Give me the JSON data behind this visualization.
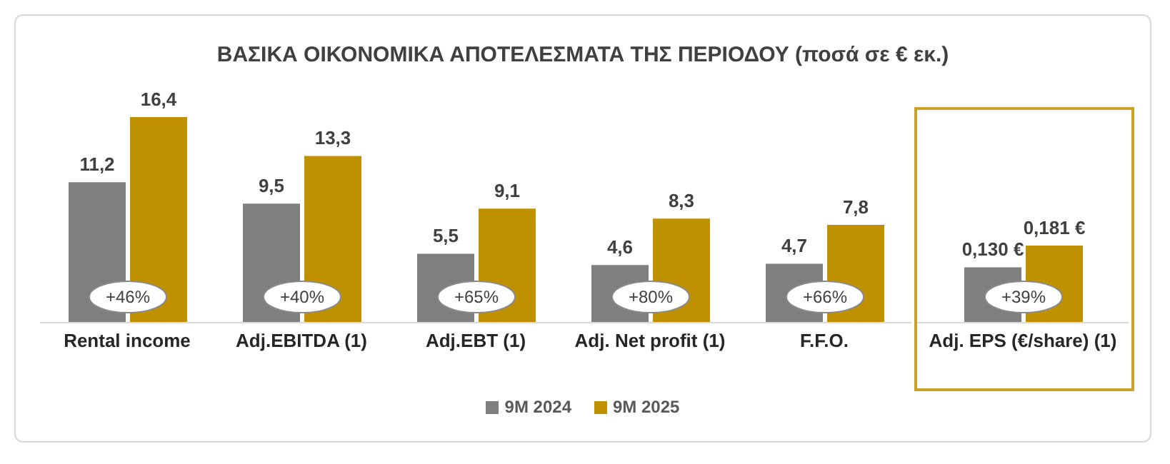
{
  "chart_data": [
    {
      "type": "bar",
      "title": "ΒΑΣΙΚΑ ΟΙΚΟΝΟΜΙΚΑ ΑΠΟΤΕΛΕΣΜΑΤΑ ΤΗΣ ΠΕΡΙΟΔΟΥ (ποσά σε € εκ.)",
      "categories": [
        "Rental income",
        "Adj.EBITDA (1)",
        "Adj.EBT (1)",
        "Adj. Net profit (1)",
        "F.F.O."
      ],
      "series": [
        {
          "name": "9M 2024",
          "color": "#7f7f7f",
          "values": [
            11.2,
            9.5,
            5.5,
            4.6,
            4.7
          ],
          "value_labels": [
            "11,2",
            "9,5",
            "5,5",
            "4,6",
            "4,7"
          ]
        },
        {
          "name": "9M 2025",
          "color": "#bf9000",
          "values": [
            16.4,
            13.3,
            9.1,
            8.3,
            7.8
          ],
          "value_labels": [
            "16,4",
            "13,3",
            "9,1",
            "8,3",
            "7,8"
          ]
        }
      ],
      "annotations": [
        {
          "text": "+46%",
          "x": "Rental income"
        },
        {
          "text": "+40%",
          "x": "Adj.EBITDA (1)"
        },
        {
          "text": "+65%",
          "x": "Adj.EBT (1)"
        },
        {
          "text": "+80%",
          "x": "Adj. Net profit (1)"
        },
        {
          "text": "+66%",
          "x": "F.F.O."
        }
      ],
      "legend": "bottom"
    },
    {
      "type": "bar",
      "categories": [
        "Adj. EPS (€/share) (1)"
      ],
      "series": [
        {
          "color": "#7f7f7f",
          "values": [
            0.13
          ],
          "value_labels": [
            "0,130 €"
          ]
        },
        {
          "color": "#bf9000",
          "values": [
            0.181
          ],
          "value_labels": [
            "0,181 €"
          ]
        }
      ],
      "annotations": [
        {
          "text": "+39%",
          "x": "Adj. EPS (€/share) (1)"
        }
      ]
    }
  ]
}
